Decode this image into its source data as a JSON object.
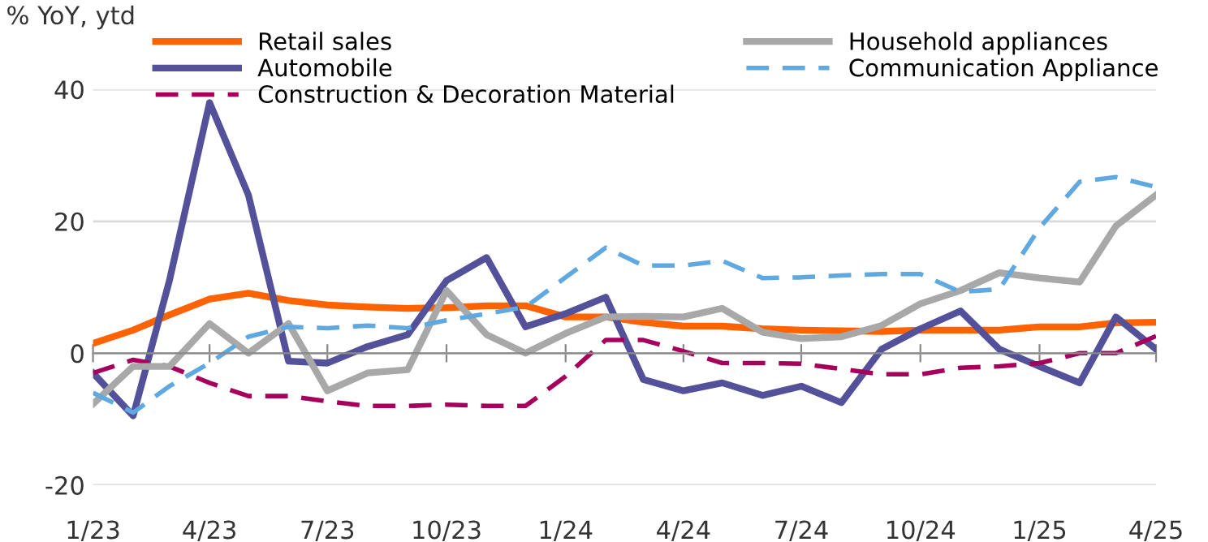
{
  "chart_data": {
    "type": "line",
    "ylabel": "% YoY, ytd",
    "x": [
      "2023-01",
      "2023-02",
      "2023-03",
      "2023-04",
      "2023-05",
      "2023-06",
      "2023-07",
      "2023-08",
      "2023-09",
      "2023-10",
      "2023-11",
      "2023-12",
      "2024-01",
      "2024-02",
      "2024-03",
      "2024-04",
      "2024-05",
      "2024-06",
      "2024-07",
      "2024-08",
      "2024-09",
      "2024-10",
      "2024-11",
      "2024-12",
      "2025-01",
      "2025-02",
      "2025-03",
      "2025-04"
    ],
    "series": [
      {
        "name": "Retail sales",
        "color": "#ff6200",
        "line_style": "solid",
        "values": [
          1.5,
          3.5,
          5.8,
          8.2,
          9.1,
          8.0,
          7.3,
          7.0,
          6.8,
          6.9,
          7.2,
          7.2,
          5.5,
          5.5,
          4.7,
          4.1,
          4.1,
          3.7,
          3.5,
          3.4,
          3.3,
          3.5,
          3.5,
          3.5,
          4.0,
          4.0,
          4.6,
          4.7
        ]
      },
      {
        "name": "Automobile",
        "color": "#525199",
        "line_style": "solid",
        "values": [
          -3,
          -9.5,
          11,
          38,
          24,
          -1.2,
          -1.5,
          1,
          2.8,
          11,
          14.5,
          4,
          6,
          8.5,
          -4,
          -5.7,
          -4.5,
          -6.4,
          -5,
          -7.5,
          0.6,
          3.7,
          6.4,
          0.6,
          -2,
          -4.5,
          5.5,
          0.6
        ]
      },
      {
        "name": "Construction & Decoration Material",
        "color": "#a6005c",
        "line_style": "dashed",
        "values": [
          -3,
          -1,
          -2,
          -4.5,
          -6.5,
          -6.5,
          -7.3,
          -8,
          -8,
          -7.8,
          -8,
          -8,
          -3.5,
          2,
          2,
          0.3,
          -1.5,
          -1.5,
          -1.6,
          -2.4,
          -3.2,
          -3.2,
          -2.2,
          -2,
          -1.5,
          0,
          0,
          2.6
        ]
      },
      {
        "name": "Household appliances",
        "color": "#a8a8a8",
        "line_style": "solid",
        "values": [
          -7.7,
          -2,
          -2,
          4.5,
          0,
          4.5,
          -5.7,
          -3,
          -2.5,
          9.5,
          2.8,
          0,
          3,
          5.5,
          5.6,
          5.5,
          6.8,
          3.2,
          2.2,
          2.5,
          4.2,
          7.5,
          9.5,
          12.2,
          11.4,
          10.8,
          19.3,
          24
        ]
      },
      {
        "name": "Communication Appliance",
        "color": "#5fa8e0",
        "line_style": "dashed",
        "values": [
          -6,
          -9,
          -5,
          -1.5,
          2.5,
          4,
          3.8,
          4.2,
          3.8,
          5,
          6,
          7,
          11.5,
          16,
          13.3,
          13.3,
          14,
          11.4,
          11.5,
          11.8,
          12,
          12,
          9.3,
          9.7,
          19,
          26,
          26.7,
          25.2
        ]
      }
    ],
    "xlim": [
      "2023-01",
      "2025-04"
    ],
    "xticks": [
      {
        "value": "2023-01",
        "label": "1/23"
      },
      {
        "value": "2023-04",
        "label": "4/23"
      },
      {
        "value": "2023-07",
        "label": "7/23"
      },
      {
        "value": "2023-10",
        "label": "10/23"
      },
      {
        "value": "2024-01",
        "label": "1/24"
      },
      {
        "value": "2024-04",
        "label": "4/24"
      },
      {
        "value": "2024-07",
        "label": "7/24"
      },
      {
        "value": "2024-10",
        "label": "10/24"
      },
      {
        "value": "2025-01",
        "label": "1/25"
      },
      {
        "value": "2025-04",
        "label": "4/25"
      }
    ],
    "ylim": [
      -20,
      40
    ],
    "yticks": [
      -20,
      0,
      20,
      40
    ],
    "grid": "y",
    "legend": "top",
    "marker": "none"
  }
}
